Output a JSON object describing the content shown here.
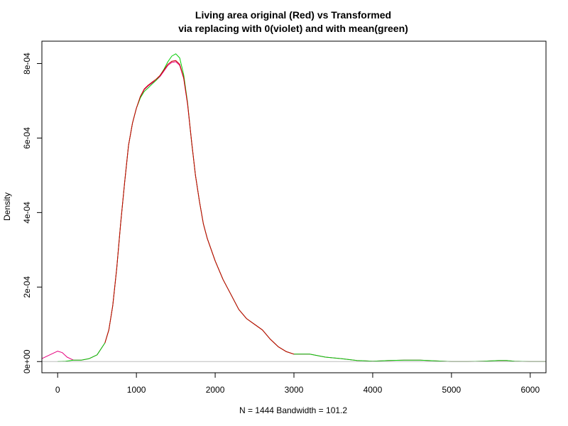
{
  "chart_data": {
    "type": "line",
    "title_line1": "Living area original (Red) vs Transformed",
    "title_line2": "via replacing with 0(violet) and with mean(green)",
    "xlabel": "N = 1444   Bandwidth = 101.2",
    "ylabel": "Density",
    "xlim": [
      -200,
      6200
    ],
    "ylim": [
      -3e-05,
      0.00086
    ],
    "x_ticks": [
      0,
      1000,
      2000,
      3000,
      4000,
      5000,
      6000
    ],
    "x_tick_labels": [
      "0",
      "1000",
      "2000",
      "3000",
      "4000",
      "5000",
      "6000"
    ],
    "y_ticks": [
      0,
      0.0002,
      0.0004,
      0.0006,
      0.0008
    ],
    "y_tick_labels": [
      "0e+00",
      "2e-04",
      "4e-04",
      "6e-04",
      "8e-04"
    ],
    "baseline": 0,
    "grid": false,
    "series": [
      {
        "color": "#e6007e",
        "points": [
          [
            -200,
            8e-06
          ],
          [
            -100,
            1.8e-05
          ],
          [
            0,
            2.8e-05
          ],
          [
            60,
            2.4e-05
          ],
          [
            120,
            1.2e-05
          ],
          [
            200,
            4e-06
          ],
          [
            300,
            4e-06
          ],
          [
            400,
            8e-06
          ],
          [
            500,
            1.8e-05
          ],
          [
            600,
            5e-05
          ],
          [
            650,
            8.5e-05
          ],
          [
            700,
            0.00015
          ],
          [
            750,
            0.00025
          ],
          [
            800,
            0.00037
          ],
          [
            850,
            0.00048
          ],
          [
            900,
            0.00058
          ],
          [
            950,
            0.00064
          ],
          [
            1000,
            0.00068
          ],
          [
            1050,
            0.00071
          ],
          [
            1100,
            0.00073
          ],
          [
            1150,
            0.00074
          ],
          [
            1200,
            0.000748
          ],
          [
            1250,
            0.000755
          ],
          [
            1300,
            0.000765
          ],
          [
            1350,
            0.00078
          ],
          [
            1400,
            0.000795
          ],
          [
            1450,
            0.000803
          ],
          [
            1500,
            0.000805
          ],
          [
            1550,
            0.000795
          ],
          [
            1600,
            0.00076
          ],
          [
            1650,
            0.00069
          ],
          [
            1700,
            0.00059
          ],
          [
            1750,
            0.0005
          ],
          [
            1800,
            0.00043
          ],
          [
            1850,
            0.00037
          ],
          [
            1900,
            0.00033
          ],
          [
            2000,
            0.00027
          ],
          [
            2100,
            0.00022
          ],
          [
            2200,
            0.00018
          ],
          [
            2300,
            0.00014
          ],
          [
            2400,
            0.000115
          ],
          [
            2500,
            0.0001
          ],
          [
            2600,
            8.5e-05
          ],
          [
            2700,
            6e-05
          ],
          [
            2800,
            4e-05
          ],
          [
            2900,
            2.7e-05
          ],
          [
            3000,
            2e-05
          ],
          [
            3100,
            2e-05
          ],
          [
            3200,
            2e-05
          ],
          [
            3300,
            1.6e-05
          ],
          [
            3400,
            1.2e-05
          ],
          [
            3600,
            8e-06
          ],
          [
            3800,
            3e-06
          ],
          [
            4000,
            1e-06
          ],
          [
            4200,
            3e-06
          ],
          [
            4400,
            4e-06
          ],
          [
            4600,
            4e-06
          ],
          [
            4800,
            2e-06
          ],
          [
            5000,
            0.0
          ],
          [
            5200,
            0.0
          ],
          [
            5400,
            1e-06
          ],
          [
            5600,
            3e-06
          ],
          [
            5700,
            3e-06
          ],
          [
            5800,
            1e-06
          ],
          [
            6000,
            0.0
          ],
          [
            6200,
            0.0
          ]
        ]
      },
      {
        "color": "#00cc00",
        "points": [
          [
            0,
            0.0
          ],
          [
            100,
            1e-06
          ],
          [
            200,
            4e-06
          ],
          [
            300,
            4e-06
          ],
          [
            400,
            8e-06
          ],
          [
            500,
            1.8e-05
          ],
          [
            600,
            5e-05
          ],
          [
            650,
            8.5e-05
          ],
          [
            700,
            0.00015
          ],
          [
            750,
            0.00025
          ],
          [
            800,
            0.00037
          ],
          [
            850,
            0.00048
          ],
          [
            900,
            0.00058
          ],
          [
            950,
            0.00064
          ],
          [
            1000,
            0.00068
          ],
          [
            1050,
            0.000708
          ],
          [
            1100,
            0.000725
          ],
          [
            1150,
            0.000735
          ],
          [
            1200,
            0.000745
          ],
          [
            1250,
            0.000755
          ],
          [
            1300,
            0.000768
          ],
          [
            1350,
            0.000785
          ],
          [
            1400,
            0.000805
          ],
          [
            1450,
            0.00082
          ],
          [
            1500,
            0.000826
          ],
          [
            1550,
            0.000815
          ],
          [
            1600,
            0.00077
          ],
          [
            1650,
            0.000695
          ],
          [
            1700,
            0.00059
          ],
          [
            1750,
            0.0005
          ],
          [
            1800,
            0.00043
          ],
          [
            1850,
            0.00037
          ],
          [
            1900,
            0.00033
          ],
          [
            2000,
            0.00027
          ],
          [
            2100,
            0.00022
          ],
          [
            2200,
            0.00018
          ],
          [
            2300,
            0.00014
          ],
          [
            2400,
            0.000115
          ],
          [
            2500,
            0.0001
          ],
          [
            2600,
            8.5e-05
          ],
          [
            2700,
            6e-05
          ],
          [
            2800,
            4e-05
          ],
          [
            2900,
            2.7e-05
          ],
          [
            3000,
            2e-05
          ],
          [
            3100,
            2e-05
          ],
          [
            3200,
            2e-05
          ],
          [
            3300,
            1.6e-05
          ],
          [
            3400,
            1.2e-05
          ],
          [
            3600,
            8e-06
          ],
          [
            3800,
            3e-06
          ],
          [
            4000,
            1e-06
          ],
          [
            4200,
            3e-06
          ],
          [
            4400,
            4e-06
          ],
          [
            4600,
            4e-06
          ],
          [
            4800,
            2e-06
          ],
          [
            5000,
            0.0
          ],
          [
            5200,
            0.0
          ],
          [
            5400,
            1e-06
          ],
          [
            5600,
            3e-06
          ],
          [
            5700,
            3e-06
          ],
          [
            5800,
            1e-06
          ],
          [
            6000,
            0.0
          ],
          [
            6200,
            0.0
          ]
        ]
      },
      {
        "color": "#cc0000",
        "points": [
          [
            600,
            5e-05
          ],
          [
            650,
            8.5e-05
          ],
          [
            700,
            0.00015
          ],
          [
            750,
            0.00025
          ],
          [
            800,
            0.00037
          ],
          [
            850,
            0.00048
          ],
          [
            900,
            0.00058
          ],
          [
            950,
            0.00064
          ],
          [
            1000,
            0.00068
          ],
          [
            1050,
            0.000712
          ],
          [
            1100,
            0.000732
          ],
          [
            1150,
            0.000742
          ],
          [
            1200,
            0.00075
          ],
          [
            1250,
            0.000758
          ],
          [
            1300,
            0.000768
          ],
          [
            1350,
            0.000783
          ],
          [
            1400,
            0.000798
          ],
          [
            1450,
            0.000806
          ],
          [
            1500,
            0.000808
          ],
          [
            1550,
            0.000798
          ],
          [
            1600,
            0.000762
          ],
          [
            1650,
            0.000692
          ],
          [
            1700,
            0.000592
          ],
          [
            1750,
            0.0005
          ],
          [
            1800,
            0.00043
          ],
          [
            1850,
            0.00037
          ],
          [
            1900,
            0.00033
          ],
          [
            2000,
            0.00027
          ],
          [
            2100,
            0.00022
          ],
          [
            2200,
            0.00018
          ],
          [
            2300,
            0.00014
          ],
          [
            2400,
            0.000115
          ],
          [
            2500,
            0.0001
          ],
          [
            2600,
            8.5e-05
          ],
          [
            2700,
            6e-05
          ],
          [
            2800,
            4e-05
          ],
          [
            2900,
            2.7e-05
          ],
          [
            3000,
            2e-05
          ]
        ]
      }
    ]
  }
}
